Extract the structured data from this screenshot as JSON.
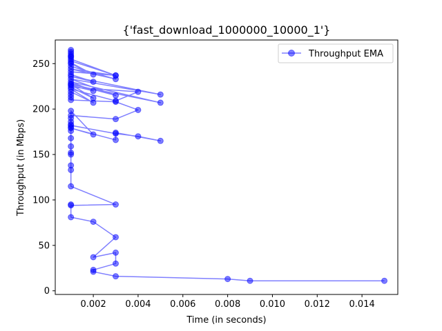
{
  "chart_data": {
    "type": "line",
    "title": "{'fast_download_1000000_10000_1'}",
    "xlabel": "Time (in seconds)",
    "ylabel": "Throughput (in Mbps)",
    "xlim": [
      0.0003,
      0.0156
    ],
    "ylim": [
      -4,
      276
    ],
    "xticks": [
      0.002,
      0.004,
      0.006,
      0.008,
      0.01,
      0.012,
      0.014
    ],
    "xtick_labels": [
      "0.002",
      "0.004",
      "0.006",
      "0.008",
      "0.010",
      "0.012",
      "0.014"
    ],
    "yticks": [
      0,
      50,
      100,
      150,
      200,
      250
    ],
    "ytick_labels": [
      "0",
      "50",
      "100",
      "150",
      "200",
      "250"
    ],
    "grid": false,
    "legend_position": "top-right",
    "series": [
      {
        "name": "Throughput EMA",
        "color": "#0000ff",
        "marker": "circle",
        "x": [
          0.015,
          0.009,
          0.008,
          0.003,
          0.002,
          0.002,
          0.003,
          0.003,
          0.002,
          0.003,
          0.002,
          0.001,
          0.001,
          0.001,
          0.003,
          0.001,
          0.001,
          0.001,
          0.001,
          0.001,
          0.001,
          0.001,
          0.001,
          0.001,
          0.001,
          0.001,
          0.001,
          0.001,
          0.002,
          0.001,
          0.003,
          0.003,
          0.005,
          0.004,
          0.003,
          0.001,
          0.001,
          0.003,
          0.004,
          0.003,
          0.001,
          0.001,
          0.001,
          0.001,
          0.002,
          0.001,
          0.003,
          0.004,
          0.001,
          0.002,
          0.001,
          0.005,
          0.001,
          0.002,
          0.001,
          0.001,
          0.003,
          0.001,
          0.005,
          0.001,
          0.002,
          0.001,
          0.001,
          0.003,
          0.001,
          0.003,
          0.001,
          0.001,
          0.002,
          0.001,
          0.001,
          0.003,
          0.001,
          0.001,
          0.001,
          0.001,
          0.001,
          0.001,
          0.001
        ],
        "y": [
          11,
          11,
          13,
          16,
          21,
          23,
          30,
          42,
          37,
          59,
          76,
          81,
          95,
          94,
          95,
          115,
          133,
          138,
          150,
          152,
          159,
          168,
          176,
          180,
          183,
          186,
          190,
          198,
          172,
          179,
          166,
          174,
          165,
          170,
          173,
          182,
          193,
          189,
          199,
          208,
          210,
          213,
          216,
          219,
          207,
          222,
          209,
          219,
          224,
          212,
          227,
          207,
          230,
          220,
          226,
          228,
          215,
          233,
          216,
          236,
          230,
          238,
          241,
          237,
          244,
          233,
          247,
          250,
          238,
          251,
          253,
          237,
          255,
          257,
          258,
          259,
          261,
          263,
          265
        ]
      }
    ]
  }
}
